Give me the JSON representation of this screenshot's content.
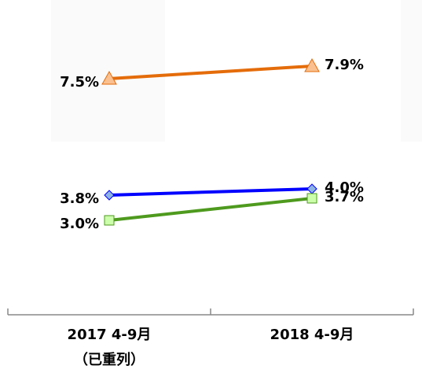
{
  "chart_data": {
    "type": "line",
    "categories": [
      "2017 4-9月\n（已重列）",
      "2018 4-9月"
    ],
    "series": [
      {
        "color": "#e46c0a",
        "marker": "triangle",
        "marker_color": "#fac090",
        "values": [
          7.5,
          7.9
        ],
        "value_labels": [
          "7.5%",
          "7.9%"
        ]
      },
      {
        "color": "#0000ff",
        "marker": "diamond",
        "marker_color": "#8db4e2",
        "values": [
          3.8,
          4.0
        ],
        "value_labels": [
          "3.8%",
          "4.0%"
        ]
      },
      {
        "color": "#4e9a1e",
        "marker": "square",
        "marker_color": "#ccffaa",
        "values": [
          3.0,
          3.7
        ],
        "value_labels": [
          "3.0%",
          "3.7%"
        ]
      }
    ],
    "ylim": [
      0,
      10
    ]
  }
}
